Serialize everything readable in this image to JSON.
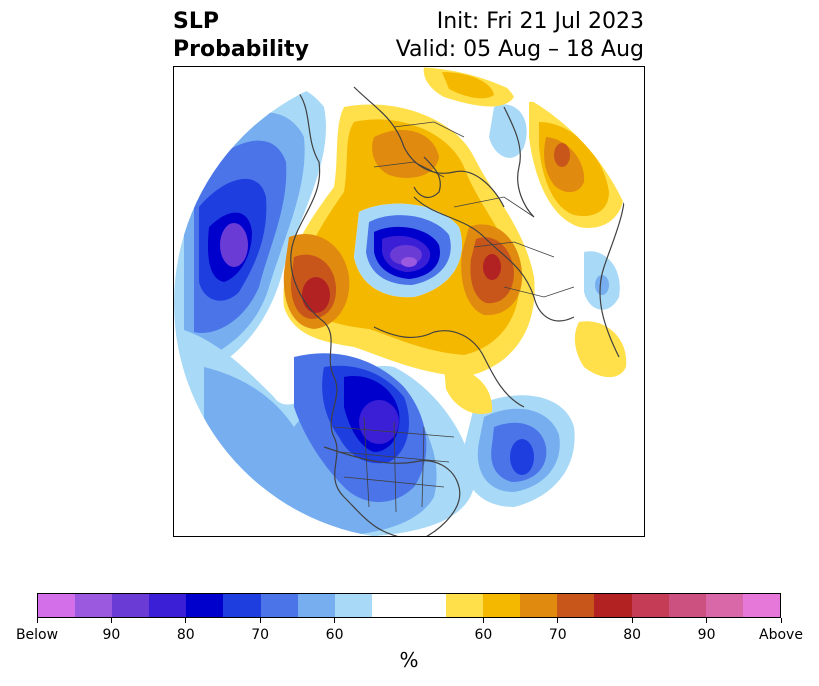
{
  "title": {
    "left_line1": "SLP",
    "left_line2": "Probability",
    "right_line1": "Init: Fri 21 Jul 2023",
    "right_line2": "Valid: 05 Aug – 18 Aug"
  },
  "colorbar": {
    "units": "%",
    "colors": [
      "#d36fe8",
      "#9b59e0",
      "#6b3bd6",
      "#3b1fd6",
      "#0000cc",
      "#1e3ee0",
      "#4a74e8",
      "#76aef0",
      "#a8daf8",
      "#ffffff",
      "#ffffff",
      "#ffe04a",
      "#f5b800",
      "#e08a10",
      "#c8561a",
      "#b22222",
      "#c43c56",
      "#cc5080",
      "#d868a8",
      "#e578d8"
    ],
    "tick_labels": [
      "Below",
      "90",
      "80",
      "70",
      "60",
      "60",
      "70",
      "80",
      "90",
      "Above"
    ]
  },
  "map": {
    "projection": "polar-stereographic",
    "field": "SLP probability"
  }
}
